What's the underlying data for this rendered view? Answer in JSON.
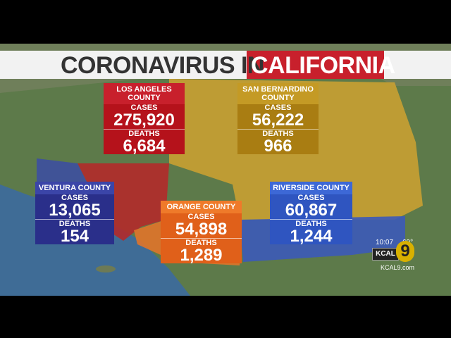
{
  "header": {
    "title_prefix": "CORONAVIRUS IN",
    "title_highlight": "CALIFORNIA"
  },
  "counties": [
    {
      "name": "LOS ANGELES COUNTY",
      "cases_label": "CASES",
      "cases": "275,920",
      "deaths_label": "DEATHS",
      "deaths": "6,684"
    },
    {
      "name": "SAN BERNARDINO COUNTY",
      "cases_label": "CASES",
      "cases": "56,222",
      "deaths_label": "DEATHS",
      "deaths": "966"
    },
    {
      "name": "VENTURA COUNTY",
      "cases_label": "CASES",
      "cases": "13,065",
      "deaths_label": "DEATHS",
      "deaths": "154"
    },
    {
      "name": "ORANGE COUNTY",
      "cases_label": "CASES",
      "cases": "54,898",
      "deaths_label": "DEATHS",
      "deaths": "1,289"
    },
    {
      "name": "RIVERSIDE COUNTY",
      "cases_label": "CASES",
      "cases": "60,867",
      "deaths_label": "DEATHS",
      "deaths": "1,244"
    }
  ],
  "station": {
    "time": "10:07",
    "temperature": "69°",
    "logo_text": "KCAL",
    "logo_number": "9",
    "website": "KCAL9.com"
  }
}
